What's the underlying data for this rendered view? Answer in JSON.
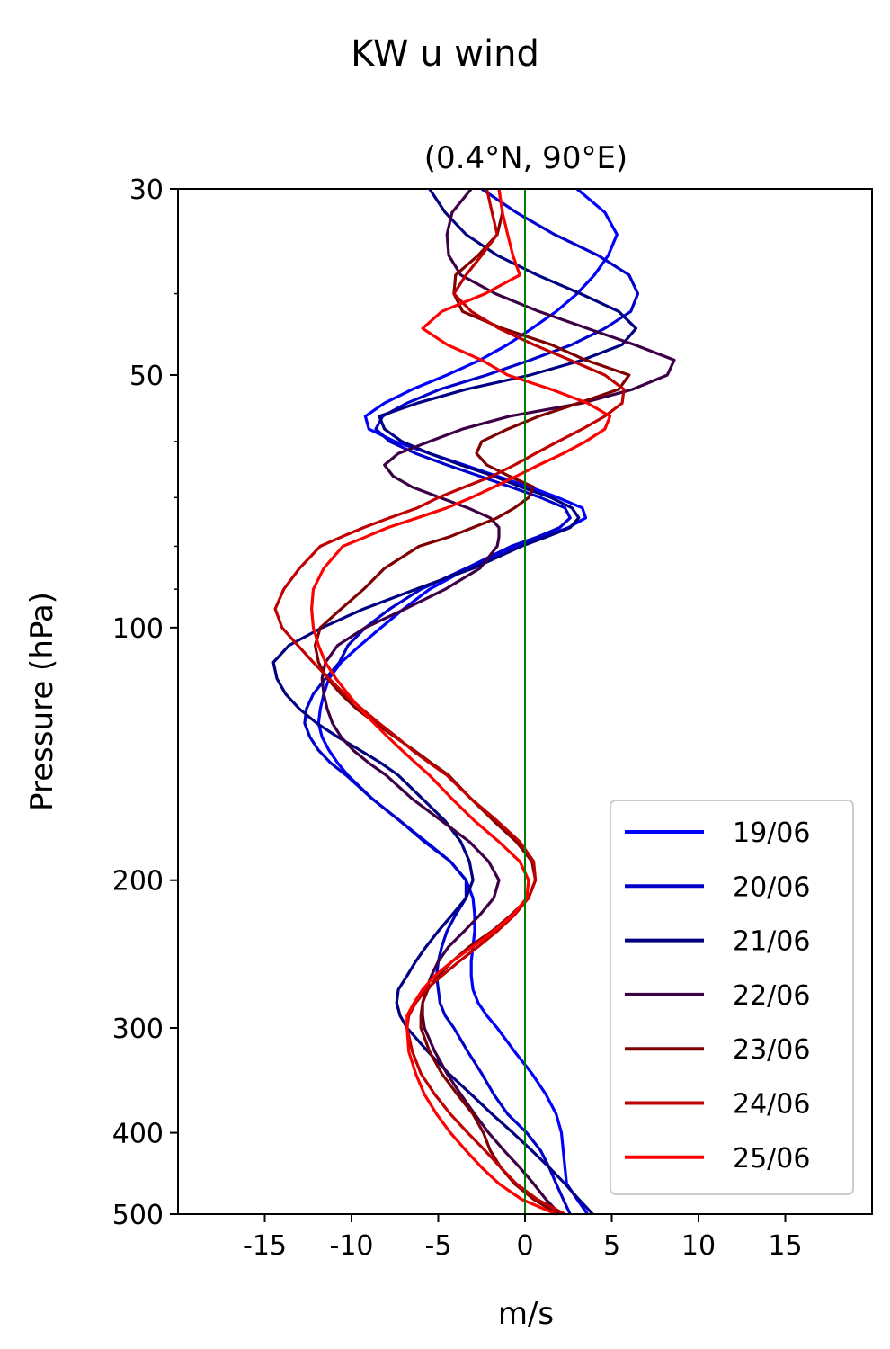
{
  "figure": {
    "suptitle": "KW u wind"
  },
  "chart_data": {
    "type": "line",
    "title": "(0.4°N, 90°E)",
    "xlabel": "m/s",
    "ylabel": "Pressure (hPa)",
    "xlim": [
      -20,
      20
    ],
    "ylim": [
      500,
      30
    ],
    "yscale": "log",
    "x_ticks": [
      -15,
      -10,
      -5,
      0,
      5,
      10,
      15
    ],
    "x_tick_labels": [
      "-15",
      "-10",
      "-5",
      "0",
      "5",
      "10",
      "15"
    ],
    "y_ticks": [
      30,
      50,
      100,
      200,
      300,
      400,
      500
    ],
    "y_tick_labels": [
      "30",
      "50",
      "100",
      "200",
      "300",
      "400",
      "500"
    ],
    "y_minor_ticks": [
      40,
      60,
      70,
      80,
      90
    ],
    "reference_line": {
      "x": 0,
      "color": "#008000"
    },
    "grid": false,
    "legend_position": "lower-right",
    "pressure_levels": [
      30,
      32,
      34,
      36,
      38,
      40,
      42,
      44,
      46,
      48,
      50,
      52,
      54,
      56,
      58,
      60,
      62,
      64,
      66,
      68,
      70,
      72,
      74,
      76,
      78,
      80,
      85,
      90,
      95,
      100,
      105,
      110,
      115,
      120,
      125,
      130,
      135,
      140,
      145,
      150,
      160,
      170,
      180,
      190,
      200,
      210,
      220,
      230,
      240,
      250,
      260,
      270,
      280,
      290,
      300,
      320,
      340,
      360,
      380,
      400,
      420,
      440,
      460,
      480,
      500
    ],
    "series": [
      {
        "name": "19/06",
        "color": "#0000ff",
        "values": [
          3.0,
          4.6,
          5.3,
          4.8,
          4.0,
          3.0,
          1.8,
          0.4,
          -1.0,
          -2.6,
          -4.5,
          -6.5,
          -8.1,
          -9.2,
          -9.0,
          -7.5,
          -5.5,
          -3.5,
          -1.6,
          0.3,
          1.9,
          3.3,
          3.5,
          2.5,
          1.0,
          -0.6,
          -3.3,
          -5.5,
          -7.0,
          -8.3,
          -9.5,
          -10.6,
          -11.3,
          -11.6,
          -11.8,
          -11.9,
          -11.7,
          -11.3,
          -10.8,
          -10.2,
          -8.8,
          -7.2,
          -5.7,
          -4.3,
          -3.4,
          -3.0,
          -2.9,
          -2.9,
          -3.0,
          -3.1,
          -3.1,
          -3.0,
          -2.7,
          -2.2,
          -1.6,
          -0.6,
          0.4,
          1.2,
          1.8,
          2.1,
          2.2,
          2.3,
          2.4,
          3.0,
          3.6
        ]
      },
      {
        "name": "20/06",
        "color": "#0000cc",
        "values": [
          -2.5,
          -0.5,
          1.7,
          4.2,
          6.0,
          6.5,
          6.1,
          4.6,
          2.7,
          0.3,
          -2.2,
          -4.9,
          -6.8,
          -8.2,
          -8.6,
          -7.8,
          -6.3,
          -4.5,
          -2.6,
          -0.8,
          0.9,
          2.3,
          2.6,
          2.0,
          0.7,
          -0.8,
          -3.4,
          -6.0,
          -7.8,
          -9.2,
          -10.2,
          -10.7,
          -11.5,
          -12.2,
          -12.6,
          -12.7,
          -12.4,
          -11.9,
          -11.2,
          -10.3,
          -8.8,
          -7.2,
          -5.8,
          -4.3,
          -3.4,
          -3.4,
          -4.0,
          -4.5,
          -4.8,
          -5.0,
          -5.1,
          -5.0,
          -4.9,
          -4.6,
          -4.1,
          -3.3,
          -2.5,
          -1.8,
          -1.0,
          0.1,
          0.9,
          1.4,
          1.8,
          2.2,
          2.6
        ]
      },
      {
        "name": "21/06",
        "color": "#000080",
        "values": [
          -5.5,
          -4.6,
          -3.4,
          -1.6,
          0.7,
          3.2,
          5.4,
          6.4,
          5.6,
          3.3,
          0.3,
          -3.4,
          -6.2,
          -8.4,
          -8.1,
          -7.1,
          -5.5,
          -3.7,
          -1.8,
          -0.2,
          1.5,
          2.7,
          3.1,
          2.6,
          1.2,
          -0.2,
          -3.0,
          -6.3,
          -9.3,
          -11.7,
          -13.6,
          -14.5,
          -14.3,
          -13.8,
          -13.0,
          -12.0,
          -10.8,
          -9.5,
          -8.3,
          -7.3,
          -5.9,
          -4.6,
          -3.7,
          -3.2,
          -3.0,
          -3.4,
          -4.2,
          -5.0,
          -5.7,
          -6.3,
          -6.8,
          -7.3,
          -7.4,
          -7.2,
          -6.8,
          -5.6,
          -4.4,
          -3.1,
          -1.9,
          -0.7,
          0.4,
          1.4,
          2.3,
          3.1,
          3.9
        ]
      },
      {
        "name": "22/06",
        "color": "#3d0047",
        "values": [
          -3.1,
          -4.2,
          -4.5,
          -4.4,
          -3.7,
          -1.7,
          0.8,
          3.6,
          6.3,
          8.6,
          8.2,
          6.2,
          3.3,
          -0.9,
          -3.6,
          -5.5,
          -7.3,
          -8.1,
          -7.6,
          -6.5,
          -4.9,
          -3.3,
          -2.0,
          -1.5,
          -1.5,
          -1.6,
          -2.6,
          -4.6,
          -6.9,
          -9.2,
          -10.8,
          -11.5,
          -11.7,
          -11.6,
          -11.4,
          -11.1,
          -10.6,
          -9.9,
          -9.0,
          -8.0,
          -6.5,
          -4.8,
          -3.2,
          -2.1,
          -1.5,
          -1.8,
          -2.6,
          -3.5,
          -4.4,
          -5.0,
          -5.4,
          -5.7,
          -5.9,
          -5.9,
          -5.8,
          -5.2,
          -4.5,
          -3.7,
          -2.9,
          -2.1,
          -1.2,
          -0.3,
          0.5,
          1.2,
          2.0
        ]
      },
      {
        "name": "23/06",
        "color": "#800000",
        "values": [
          -1.5,
          -1.3,
          -1.6,
          -2.7,
          -4.0,
          -4.1,
          -3.6,
          -1.3,
          1.5,
          3.5,
          6.0,
          5.4,
          3.1,
          0.8,
          -1.0,
          -2.5,
          -2.8,
          -2.2,
          -0.9,
          0.5,
          0.2,
          -0.6,
          -1.6,
          -3.0,
          -4.4,
          -6.1,
          -8.1,
          -9.3,
          -10.6,
          -11.8,
          -12.1,
          -11.9,
          -11.4,
          -10.6,
          -9.7,
          -8.6,
          -7.5,
          -6.4,
          -5.4,
          -4.4,
          -3.1,
          -1.8,
          -0.5,
          0.4,
          0.6,
          0.2,
          -0.8,
          -1.9,
          -3.2,
          -4.2,
          -5.0,
          -5.6,
          -5.9,
          -6.0,
          -6.0,
          -5.5,
          -4.8,
          -3.9,
          -3.0,
          -2.4,
          -2.0,
          -1.4,
          -0.6,
          0.5,
          1.9
        ]
      },
      {
        "name": "24/06",
        "color": "#c00000",
        "values": [
          -2.2,
          -1.9,
          -1.6,
          -2.5,
          -3.4,
          -4.1,
          -3.1,
          -1.5,
          0.5,
          2.6,
          4.6,
          5.7,
          5.6,
          4.6,
          3.3,
          1.9,
          0.6,
          -0.6,
          -1.9,
          -3.5,
          -5.0,
          -6.2,
          -7.8,
          -9.3,
          -10.6,
          -11.8,
          -13.0,
          -13.9,
          -14.4,
          -14.0,
          -13.1,
          -12.2,
          -11.3,
          -10.4,
          -9.4,
          -8.4,
          -7.4,
          -6.5,
          -5.5,
          -4.5,
          -3.1,
          -1.6,
          -0.3,
          0.5,
          0.6,
          0.2,
          -0.6,
          -1.6,
          -2.7,
          -3.8,
          -4.8,
          -5.7,
          -6.3,
          -6.7,
          -6.8,
          -6.5,
          -6.0,
          -5.2,
          -4.3,
          -3.3,
          -2.3,
          -1.4,
          -0.5,
          0.7,
          2.3
        ]
      },
      {
        "name": "25/06",
        "color": "#ff0000",
        "values": [
          -1.5,
          -1.3,
          -1.0,
          -0.7,
          -0.3,
          -2.3,
          -4.8,
          -5.9,
          -4.5,
          -2.5,
          -1.0,
          1.5,
          3.6,
          4.9,
          4.6,
          3.5,
          2.2,
          0.8,
          -0.5,
          -1.8,
          -3.1,
          -4.5,
          -6.2,
          -7.9,
          -9.2,
          -10.5,
          -11.6,
          -12.2,
          -12.3,
          -12.2,
          -11.9,
          -11.5,
          -10.9,
          -10.2,
          -9.5,
          -8.7,
          -7.9,
          -7.1,
          -6.3,
          -5.5,
          -4.2,
          -2.9,
          -1.5,
          -0.3,
          0.2,
          0.1,
          -0.7,
          -1.8,
          -3.0,
          -4.2,
          -5.2,
          -5.9,
          -6.4,
          -6.8,
          -6.8,
          -6.7,
          -6.3,
          -5.8,
          -5.1,
          -4.3,
          -3.4,
          -2.5,
          -1.5,
          -0.2,
          1.8
        ]
      }
    ]
  }
}
